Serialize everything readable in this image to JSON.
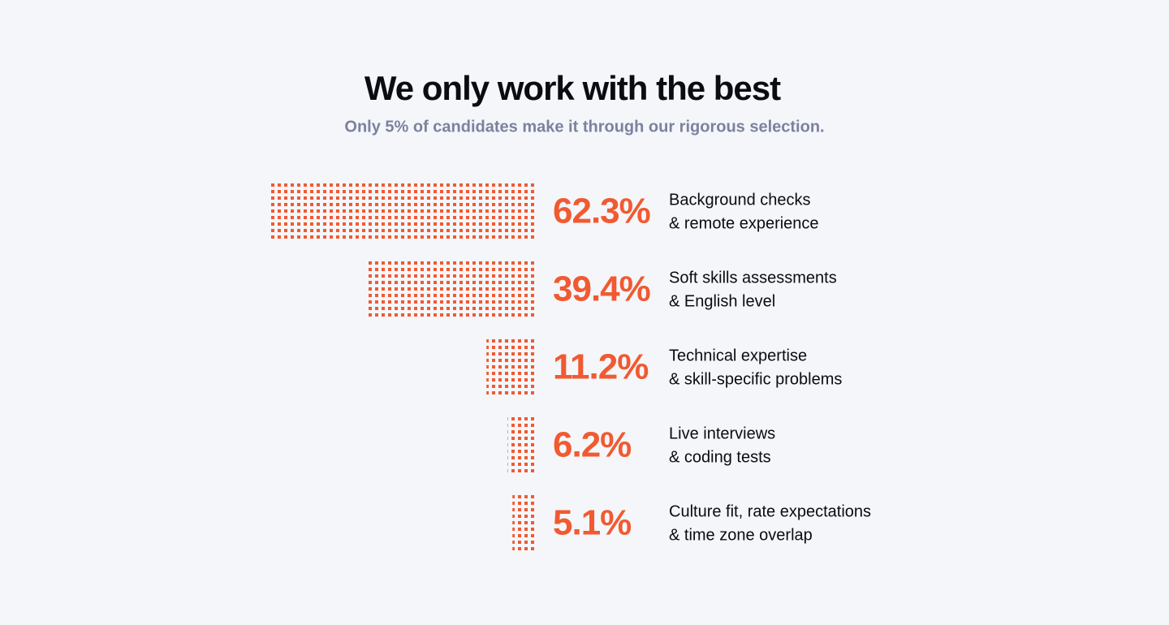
{
  "chart_data": {
    "type": "bar",
    "orientation": "horizontal",
    "title": "We only work with the best",
    "subtitle": "Only 5% of candidates make it through our rigorous selection.",
    "categories": [
      [
        "Background checks",
        "& remote experience"
      ],
      [
        "Soft skills assessments",
        "& English level"
      ],
      [
        "Technical expertise",
        "& skill-specific problems"
      ],
      [
        "Live interviews",
        "& coding tests"
      ],
      [
        "Culture fit, rate expectations",
        "& time zone overlap"
      ]
    ],
    "values": [
      62.3,
      39.4,
      11.2,
      6.2,
      5.1
    ],
    "value_labels": [
      "62.3%",
      "39.4%",
      "11.2%",
      "6.2%",
      "5.1%"
    ],
    "color": "#f15a31"
  }
}
